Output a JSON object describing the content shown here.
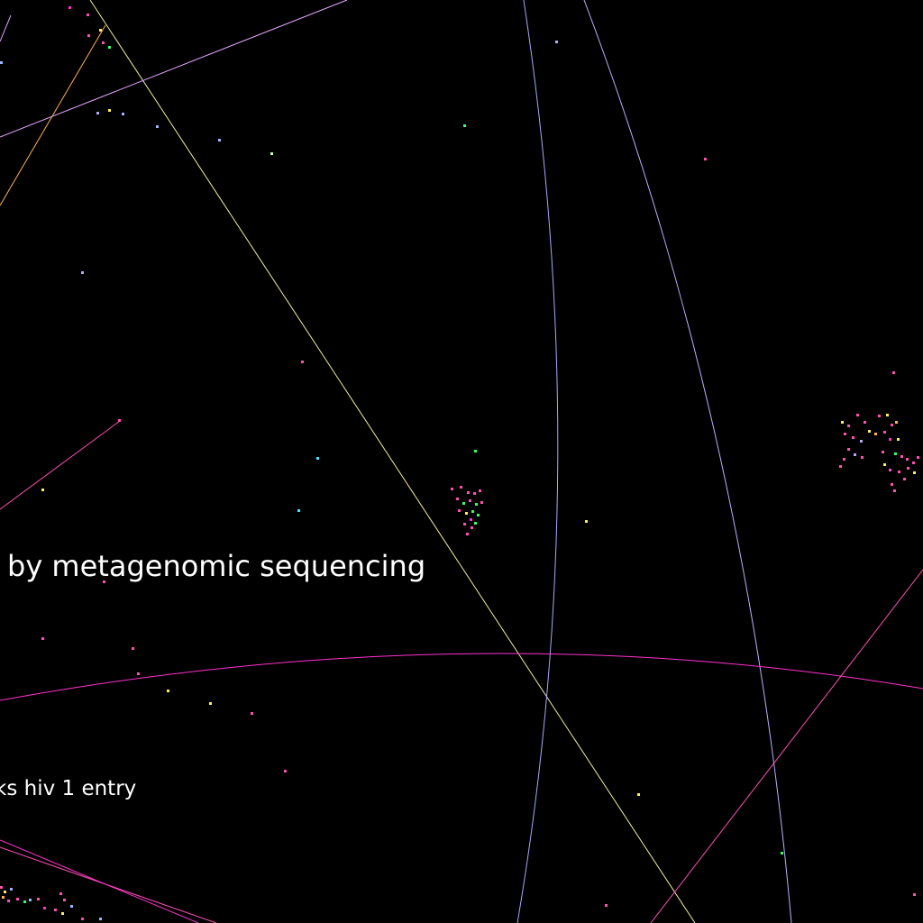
{
  "labels": {
    "large": "by metagenomic sequencing",
    "small": "ks hiv 1 entry"
  },
  "palette": {
    "background": "#000000",
    "text": "#ffffff",
    "pink": "#ff4fb4",
    "magenta": "#ff33cc",
    "lavender": "#b9a6ff",
    "periwinkle": "#8f9dff",
    "yellow": "#ffee55",
    "pale_yellow": "#f2ee9a",
    "orange": "#ffb347",
    "green": "#33ff66",
    "cyan": "#3ee8ff",
    "light_blue": "#9ab8ff"
  }
}
